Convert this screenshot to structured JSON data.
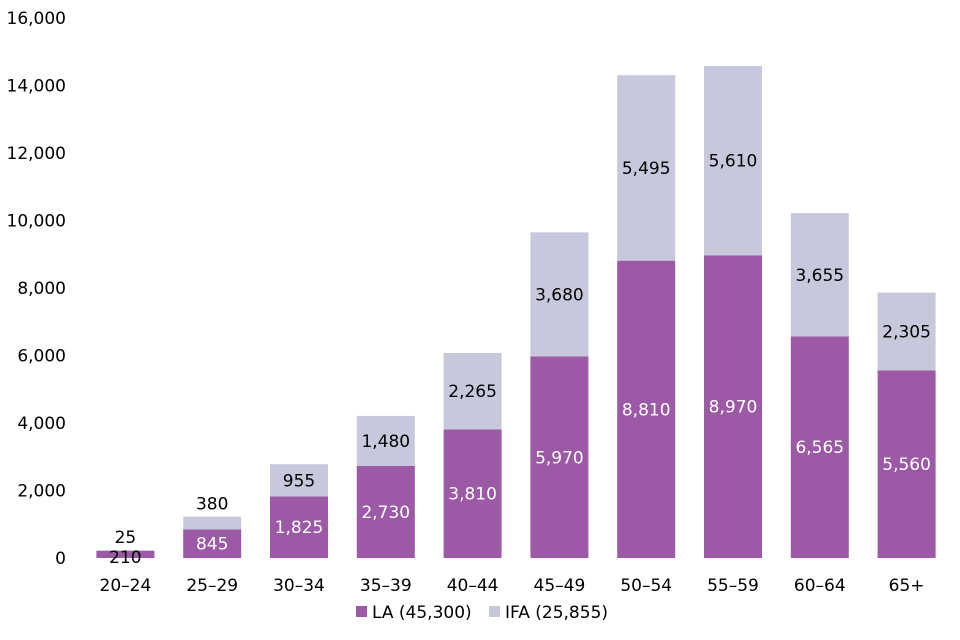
{
  "chart_data": {
    "type": "bar",
    "stacked": true,
    "categories": [
      "20–24",
      "25–29",
      "30–34",
      "35–39",
      "40–44",
      "45–49",
      "50–54",
      "55–59",
      "60–64",
      "65+"
    ],
    "series": [
      {
        "name": "LA (45,300)",
        "color": "#9b59a6",
        "label_color": "#ffffff",
        "values": [
          210,
          845,
          1825,
          2730,
          3810,
          5970,
          8810,
          8970,
          6565,
          5560
        ],
        "labels": [
          "210",
          "845",
          "1,825",
          "2,730",
          "3,810",
          "5,970",
          "8,810",
          "8,970",
          "6,565",
          "5,560"
        ]
      },
      {
        "name": "IFA (25,855)",
        "color": "#c8c8dc",
        "label_color": "#000000",
        "values": [
          25,
          380,
          955,
          1480,
          2265,
          3680,
          5495,
          5610,
          3655,
          2305
        ],
        "labels": [
          "25",
          "380",
          "955",
          "1,480",
          "2,265",
          "3,680",
          "5,495",
          "5,610",
          "3,655",
          "2,305"
        ]
      }
    ],
    "title": "",
    "xlabel": "",
    "ylabel": "",
    "ylim": [
      0,
      16000
    ],
    "yticks": [
      0,
      2000,
      4000,
      6000,
      8000,
      10000,
      12000,
      14000,
      16000
    ],
    "ytick_labels": [
      "0",
      "2,000",
      "4,000",
      "6,000",
      "8,000",
      "10,000",
      "12,000",
      "14,000",
      "16,000"
    ],
    "grid": false,
    "legend": "bottom"
  }
}
